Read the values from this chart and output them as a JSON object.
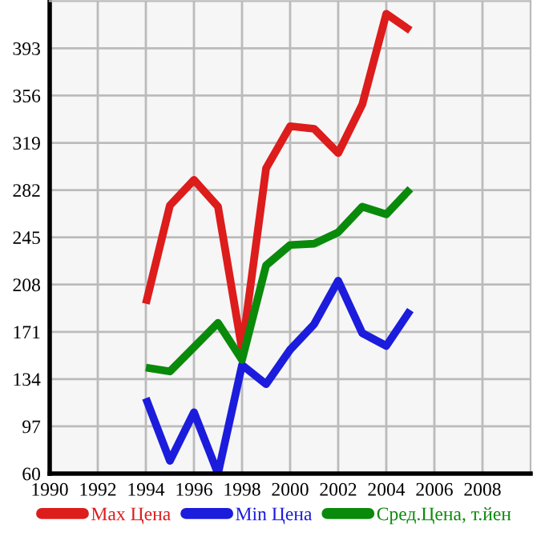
{
  "chart_data": {
    "type": "line",
    "x": [
      1994,
      1995,
      1996,
      1997,
      1998,
      1999,
      2000,
      2001,
      2002,
      2003,
      2004,
      2005
    ],
    "series": [
      {
        "name": "Max Цена",
        "color": "#dd1c1c",
        "values": [
          193,
          270,
          290,
          269,
          157,
          299,
          332,
          330,
          311,
          349,
          420,
          407
        ]
      },
      {
        "name": "Min Цена",
        "color": "#1c1cdd",
        "values": [
          119,
          70,
          108,
          60,
          145,
          130,
          157,
          177,
          211,
          170,
          160,
          188
        ]
      },
      {
        "name": "Сред.Цена, т.йен",
        "color": "#0a8a0a",
        "values": [
          143,
          140,
          159,
          178,
          149,
          223,
          239,
          240,
          249,
          269,
          263,
          283
        ]
      }
    ],
    "xlim": [
      1990,
      2010
    ],
    "xticks": [
      1990,
      1992,
      1994,
      1996,
      1998,
      2000,
      2002,
      2004,
      2006,
      2008
    ],
    "ylim": [
      60,
      430
    ],
    "yticks": [
      60,
      97,
      134,
      171,
      208,
      245,
      282,
      319,
      356,
      393
    ],
    "grid": true,
    "legend": "bottom",
    "marker": "none",
    "line_style": "solid"
  }
}
